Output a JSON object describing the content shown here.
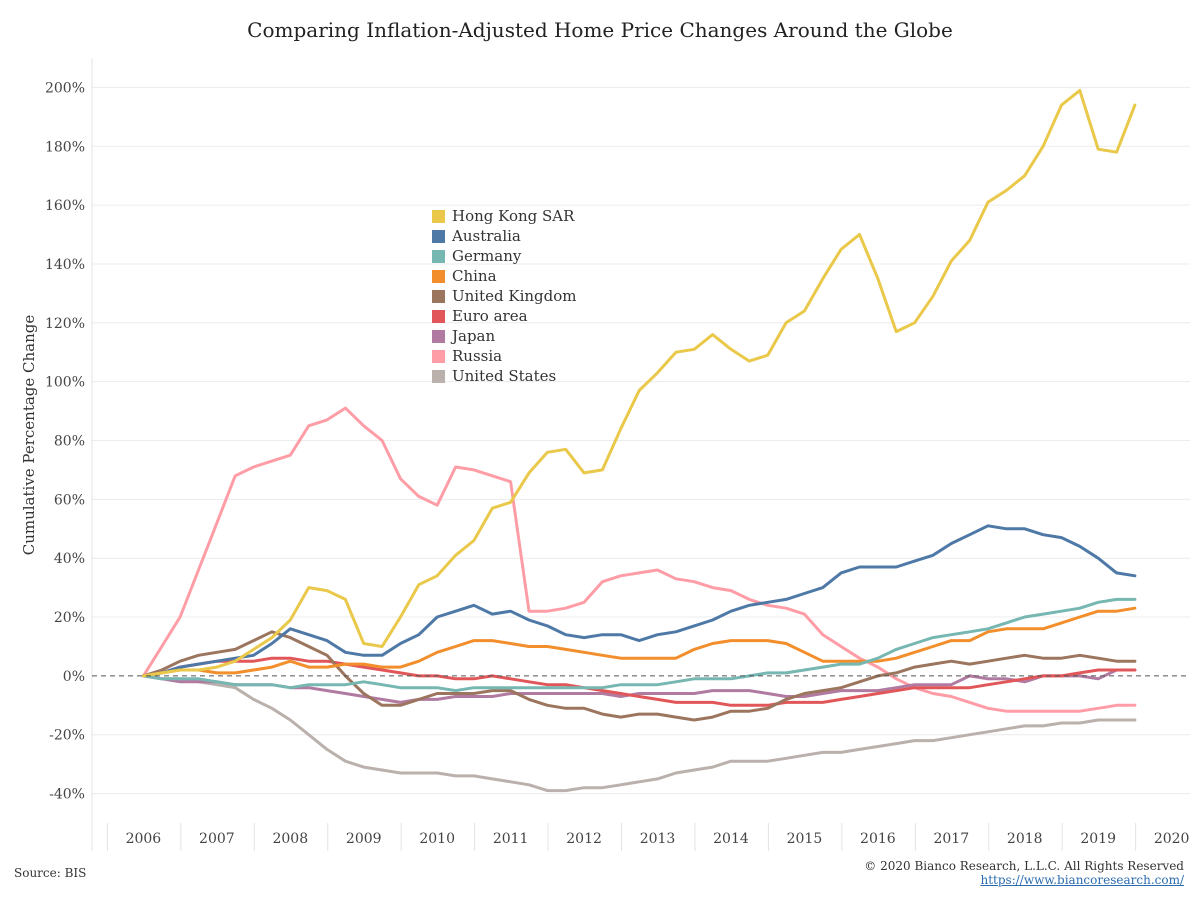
{
  "footer": {
    "source": "Source: BIS",
    "copyright": "© 2020 Bianco Research, L.L.C. All Rights Reserved",
    "url": "https://www.biancoresearch.com/"
  },
  "chart_data": {
    "type": "line",
    "title": "Comparing Inflation-Adjusted Home Price Changes Around the Globe",
    "ylabel": "Cumulative Percentage Change",
    "xlabel": "",
    "xlim": [
      2005.3,
      2020.25
    ],
    "ylim": [
      -50,
      210
    ],
    "x_ticks": [
      2006,
      2007,
      2008,
      2009,
      2010,
      2011,
      2012,
      2013,
      2014,
      2015,
      2016,
      2017,
      2018,
      2019,
      2020
    ],
    "x_tick_labels": [
      "2006",
      "2007",
      "2008",
      "2009",
      "2010",
      "2011",
      "2012",
      "2013",
      "2014",
      "2015",
      "2016",
      "2017",
      "2018",
      "2019",
      "2020"
    ],
    "y_ticks": [
      -40,
      -20,
      0,
      20,
      40,
      60,
      80,
      100,
      120,
      140,
      160,
      180,
      200
    ],
    "y_tick_labels": [
      "-40%",
      "-20%",
      "0%",
      "20%",
      "40%",
      "60%",
      "80%",
      "100%",
      "120%",
      "140%",
      "160%",
      "180%",
      "200%"
    ],
    "reference_line": 0,
    "legend_position": "center",
    "x": [
      2006.0,
      2006.25,
      2006.5,
      2006.75,
      2007.0,
      2007.25,
      2007.5,
      2007.75,
      2008.0,
      2008.25,
      2008.5,
      2008.75,
      2009.0,
      2009.25,
      2009.5,
      2009.75,
      2010.0,
      2010.25,
      2010.5,
      2010.75,
      2011.0,
      2011.25,
      2011.5,
      2011.75,
      2012.0,
      2012.25,
      2012.5,
      2012.75,
      2013.0,
      2013.25,
      2013.5,
      2013.75,
      2014.0,
      2014.25,
      2014.5,
      2014.75,
      2015.0,
      2015.25,
      2015.5,
      2015.75,
      2016.0,
      2016.25,
      2016.5,
      2016.75,
      2017.0,
      2017.25,
      2017.5,
      2017.75,
      2018.0,
      2018.25,
      2018.5,
      2018.75,
      2019.0,
      2019.25,
      2019.5
    ],
    "series": [
      {
        "name": "Hong Kong SAR",
        "color": "#E9C84A",
        "values": [
          0,
          1,
          2,
          2,
          3,
          5,
          9,
          13,
          19,
          30,
          29,
          26,
          11,
          10,
          20,
          31,
          34,
          41,
          46,
          57,
          59,
          69,
          76,
          77,
          69,
          70,
          84,
          97,
          103,
          110,
          111,
          116,
          111,
          107,
          109,
          120,
          124,
          135,
          145,
          150,
          135,
          117,
          120,
          129,
          141,
          148,
          161,
          165,
          170,
          180,
          194,
          199,
          179,
          178,
          194
        ]
      },
      {
        "name": "Australia",
        "color": "#4E79A7",
        "values": [
          0,
          1,
          3,
          4,
          5,
          6,
          7,
          11,
          16,
          14,
          12,
          8,
          7,
          7,
          11,
          14,
          20,
          22,
          24,
          21,
          22,
          19,
          17,
          14,
          13,
          14,
          14,
          12,
          14,
          15,
          17,
          19,
          22,
          24,
          25,
          26,
          28,
          30,
          35,
          37,
          37,
          37,
          39,
          41,
          45,
          48,
          51,
          50,
          50,
          48,
          47,
          44,
          40,
          35,
          34
        ]
      },
      {
        "name": "Germany",
        "color": "#76B7B2",
        "values": [
          0,
          -1,
          -1,
          -1,
          -2,
          -3,
          -3,
          -3,
          -4,
          -3,
          -3,
          -3,
          -2,
          -3,
          -4,
          -4,
          -4,
          -5,
          -4,
          -4,
          -4,
          -4,
          -4,
          -4,
          -4,
          -4,
          -3,
          -3,
          -3,
          -2,
          -1,
          -1,
          -1,
          0,
          1,
          1,
          2,
          3,
          4,
          4,
          6,
          9,
          11,
          13,
          14,
          15,
          16,
          18,
          20,
          21,
          22,
          23,
          25,
          26,
          26
        ]
      },
      {
        "name": "China",
        "color": "#F28E2B",
        "values": [
          0,
          1,
          2,
          2,
          1,
          1,
          2,
          3,
          5,
          3,
          3,
          4,
          4,
          3,
          3,
          5,
          8,
          10,
          12,
          12,
          11,
          10,
          10,
          9,
          8,
          7,
          6,
          6,
          6,
          6,
          9,
          11,
          12,
          12,
          12,
          11,
          8,
          5,
          5,
          5,
          5,
          6,
          8,
          10,
          12,
          12,
          15,
          16,
          16,
          16,
          18,
          20,
          22,
          22,
          23
        ]
      },
      {
        "name": "United Kingdom",
        "color": "#9C755F",
        "values": [
          0,
          2,
          5,
          7,
          8,
          9,
          12,
          15,
          13,
          10,
          7,
          0,
          -6,
          -10,
          -10,
          -8,
          -6,
          -6,
          -6,
          -5,
          -5,
          -8,
          -10,
          -11,
          -11,
          -13,
          -14,
          -13,
          -13,
          -14,
          -15,
          -14,
          -12,
          -12,
          -11,
          -8,
          -6,
          -5,
          -4,
          -2,
          0,
          1,
          3,
          4,
          5,
          4,
          5,
          6,
          7,
          6,
          6,
          7,
          6,
          5,
          5
        ]
      },
      {
        "name": "Euro area",
        "color": "#E15759",
        "values": [
          0,
          1,
          3,
          4,
          5,
          5,
          5,
          6,
          6,
          5,
          5,
          4,
          3,
          2,
          1,
          0,
          0,
          -1,
          -1,
          0,
          -1,
          -2,
          -3,
          -3,
          -4,
          -5,
          -6,
          -7,
          -8,
          -9,
          -9,
          -9,
          -10,
          -10,
          -10,
          -9,
          -9,
          -9,
          -8,
          -7,
          -6,
          -5,
          -4,
          -4,
          -4,
          -4,
          -3,
          -2,
          -1,
          0,
          0,
          1,
          2,
          2,
          2
        ]
      },
      {
        "name": "Japan",
        "color": "#B07AA1",
        "values": [
          0,
          -1,
          -2,
          -2,
          -2,
          -3,
          -3,
          -3,
          -4,
          -4,
          -5,
          -6,
          -7,
          -8,
          -9,
          -8,
          -8,
          -7,
          -7,
          -7,
          -6,
          -6,
          -6,
          -6,
          -6,
          -6,
          -7,
          -6,
          -6,
          -6,
          -6,
          -5,
          -5,
          -5,
          -6,
          -7,
          -7,
          -6,
          -5,
          -5,
          -5,
          -4,
          -3,
          -3,
          -3,
          0,
          -1,
          -1,
          -2,
          0,
          0,
          0,
          -1,
          2,
          2
        ]
      },
      {
        "name": "Russia",
        "color": "#FF9DA7",
        "values": [
          0,
          10,
          20,
          36,
          52,
          68,
          71,
          73,
          75,
          85,
          87,
          91,
          85,
          80,
          67,
          61,
          58,
          71,
          70,
          68,
          66,
          22,
          22,
          23,
          25,
          32,
          34,
          35,
          36,
          33,
          32,
          30,
          29,
          26,
          24,
          23,
          21,
          14,
          10,
          6,
          3,
          -1,
          -4,
          -6,
          -7,
          -9,
          -11,
          -12,
          -12,
          -12,
          -12,
          -12,
          -11,
          -10,
          -10
        ]
      },
      {
        "name": "United States",
        "color": "#BAB0AC",
        "values": [
          0,
          -1,
          -1,
          -2,
          -3,
          -4,
          -8,
          -11,
          -15,
          -20,
          -25,
          -29,
          -31,
          -32,
          -33,
          -33,
          -33,
          -34,
          -34,
          -35,
          -36,
          -37,
          -39,
          -39,
          -38,
          -38,
          -37,
          -36,
          -35,
          -33,
          -32,
          -31,
          -29,
          -29,
          -29,
          -28,
          -27,
          -26,
          -26,
          -25,
          -24,
          -23,
          -22,
          -22,
          -21,
          -20,
          -19,
          -18,
          -17,
          -17,
          -16,
          -16,
          -15,
          -15,
          -15
        ]
      }
    ]
  }
}
